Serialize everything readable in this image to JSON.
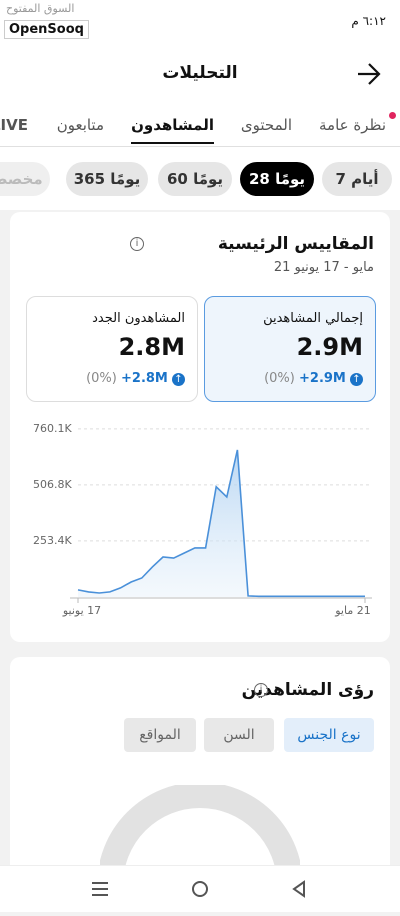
{
  "status_bar": {
    "time": "٦:١٢ م",
    "watermark": "السوق المفتوح",
    "brand": "OpenSooq"
  },
  "header": {
    "title": "التحليلات"
  },
  "tabs": {
    "items": [
      "نظرة عامة",
      "المحتوى",
      "المشاهدون",
      "متابعون",
      "LIVE"
    ],
    "active": 2
  },
  "periods": {
    "items": [
      "7 أيام",
      "28 يومًا",
      "60 يومًا",
      "365 يومًا",
      "مخصص"
    ],
    "active": 1
  },
  "metrics": {
    "title": "المقاييس الرئيسية",
    "date_range": "21 مايو - 17 يونيو",
    "cards": [
      {
        "label": "إجمالي المشاهدين",
        "value": "2.9M",
        "change": "+2.9M",
        "percent": "(0%)"
      },
      {
        "label": "المشاهدون الجدد",
        "value": "2.8M",
        "change": "+2.8M",
        "percent": "(0%)"
      }
    ]
  },
  "chart_data": {
    "type": "line",
    "x_reversed": true,
    "grid": true,
    "categories": [
      "21 مايو",
      null,
      null,
      null,
      null,
      null,
      null,
      null,
      null,
      null,
      null,
      null,
      null,
      null,
      null,
      null,
      null,
      null,
      null,
      null,
      null,
      null,
      null,
      null,
      null,
      null,
      null,
      "17 يونيو"
    ],
    "series": [
      {
        "color": "#4a90d9",
        "values": [
          3000,
          3000,
          3000,
          3000,
          3000,
          3000,
          3000,
          3000,
          3000,
          3000,
          3000,
          5000,
          665000,
          452000,
          498000,
          222000,
          222000,
          199000,
          176000,
          181000,
          136000,
          86000,
          68000,
          41000,
          23000,
          18000,
          23000,
          32000
        ]
      }
    ],
    "ylim": [
      0,
      800000
    ],
    "yticks": [
      {
        "value": 253400,
        "label": "253.4K"
      },
      {
        "value": 506800,
        "label": "506.8K"
      },
      {
        "value": 760100,
        "label": "760.1K"
      }
    ]
  },
  "insights": {
    "title": "رؤى المشاهدين",
    "buttons": [
      "نوع الجنس",
      "السن",
      "المواقع"
    ],
    "active": 0
  }
}
